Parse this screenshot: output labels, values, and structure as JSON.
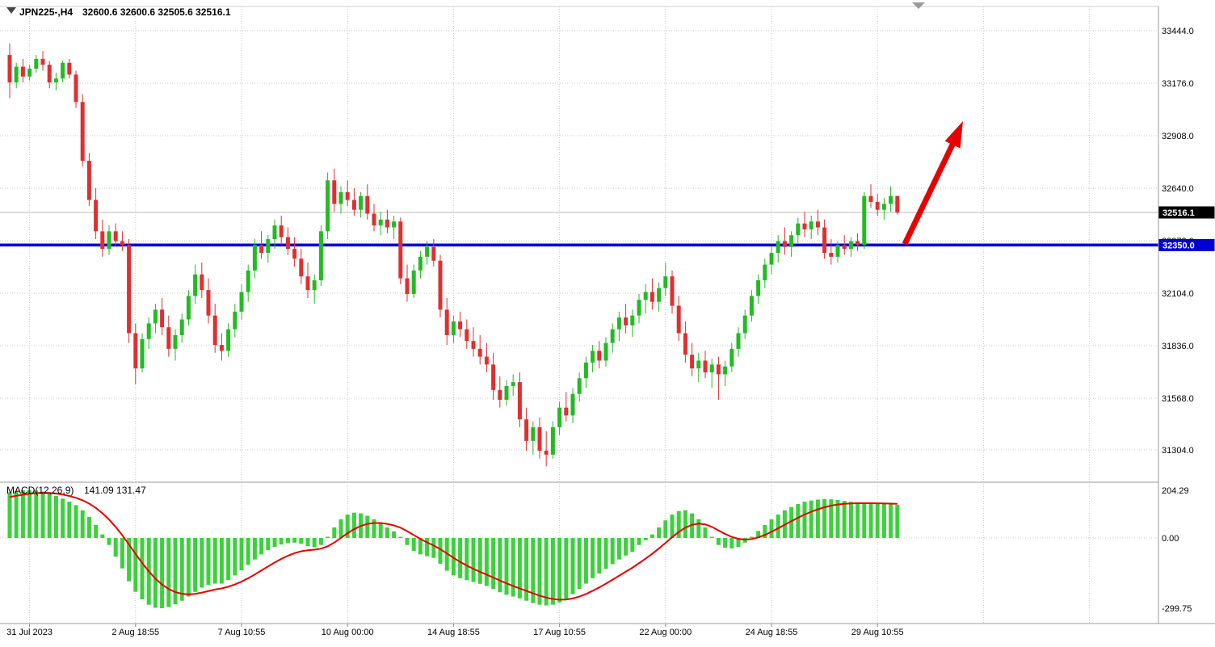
{
  "header": {
    "symbol": "JPN225-,H4",
    "ohlc": "32600.6 32600.6 32505.6 32516.1"
  },
  "chart_data": {
    "type": "candlestick",
    "title": "JPN225- H4",
    "symbol": "JPN225-",
    "timeframe": "H4",
    "price_axis": {
      "gridlines": [
        33444.0,
        33176.0,
        32908.0,
        32640.0,
        32372.0,
        32104.0,
        31836.0,
        31568.0,
        31304.0
      ],
      "visible_range": [
        31170,
        33570
      ],
      "decimals": 1
    },
    "time_axis": {
      "labels": [
        "31 Jul 2023",
        "2 Aug 18:55",
        "7 Aug 10:55",
        "10 Aug 00:00",
        "14 Aug 18:55",
        "17 Aug 10:55",
        "22 Aug 00:00",
        "24 Aug 18:55",
        "29 Aug 10:55"
      ]
    },
    "current_price": 32516.1,
    "current_price_label": "32516.1",
    "horizontal_line": {
      "value": 32350.0,
      "label": "32350.0"
    },
    "arrow_annotation": {
      "direction": "up-right",
      "color": "#e60000"
    },
    "candles": [
      [
        33320,
        33380,
        33100,
        33180
      ],
      [
        33180,
        33280,
        33150,
        33260
      ],
      [
        33260,
        33300,
        33180,
        33210
      ],
      [
        33210,
        33270,
        33190,
        33250
      ],
      [
        33250,
        33320,
        33230,
        33300
      ],
      [
        33300,
        33340,
        33240,
        33270
      ],
      [
        33270,
        33290,
        33150,
        33180
      ],
      [
        33180,
        33230,
        33140,
        33200
      ],
      [
        33200,
        33290,
        33180,
        33280
      ],
      [
        33280,
        33300,
        33200,
        33220
      ],
      [
        33220,
        33240,
        33050,
        33080
      ],
      [
        33080,
        33120,
        32750,
        32780
      ],
      [
        32780,
        32820,
        32550,
        32580
      ],
      [
        32580,
        32640,
        32380,
        32420
      ],
      [
        32420,
        32480,
        32290,
        32330
      ],
      [
        32330,
        32450,
        32300,
        32420
      ],
      [
        32420,
        32460,
        32340,
        32370
      ],
      [
        32370,
        32420,
        32320,
        32350
      ],
      [
        32350,
        32380,
        31850,
        31900
      ],
      [
        31900,
        31950,
        31640,
        31720
      ],
      [
        31720,
        31900,
        31700,
        31870
      ],
      [
        31870,
        31980,
        31820,
        31950
      ],
      [
        31950,
        32050,
        31900,
        32020
      ],
      [
        32020,
        32080,
        31890,
        31930
      ],
      [
        31930,
        31990,
        31780,
        31820
      ],
      [
        31820,
        31920,
        31760,
        31890
      ],
      [
        31890,
        32000,
        31850,
        31970
      ],
      [
        31970,
        32120,
        31940,
        32090
      ],
      [
        32090,
        32250,
        32050,
        32200
      ],
      [
        32200,
        32260,
        32080,
        32120
      ],
      [
        32120,
        32180,
        31950,
        31990
      ],
      [
        31990,
        32050,
        31800,
        31840
      ],
      [
        31840,
        31900,
        31760,
        31810
      ],
      [
        31810,
        31950,
        31780,
        31920
      ],
      [
        31920,
        32050,
        31880,
        32010
      ],
      [
        32010,
        32150,
        31970,
        32110
      ],
      [
        32110,
        32250,
        32060,
        32220
      ],
      [
        32220,
        32380,
        32180,
        32350
      ],
      [
        32350,
        32420,
        32280,
        32310
      ],
      [
        32310,
        32400,
        32260,
        32380
      ],
      [
        32380,
        32480,
        32330,
        32450
      ],
      [
        32450,
        32500,
        32350,
        32390
      ],
      [
        32390,
        32440,
        32300,
        32330
      ],
      [
        32330,
        32390,
        32240,
        32280
      ],
      [
        32280,
        32330,
        32150,
        32190
      ],
      [
        32190,
        32260,
        32080,
        32120
      ],
      [
        32120,
        32200,
        32050,
        32170
      ],
      [
        32170,
        32450,
        32140,
        32420
      ],
      [
        32420,
        32720,
        32380,
        32680
      ],
      [
        32680,
        32740,
        32520,
        32560
      ],
      [
        32560,
        32650,
        32510,
        32620
      ],
      [
        32620,
        32680,
        32550,
        32580
      ],
      [
        32580,
        32640,
        32500,
        32530
      ],
      [
        32530,
        32620,
        32490,
        32600
      ],
      [
        32600,
        32660,
        32480,
        32510
      ],
      [
        32510,
        32560,
        32420,
        32450
      ],
      [
        32450,
        32520,
        32400,
        32480
      ],
      [
        32480,
        32530,
        32410,
        32440
      ],
      [
        32440,
        32500,
        32380,
        32470
      ],
      [
        32470,
        32490,
        32150,
        32180
      ],
      [
        32180,
        32250,
        32060,
        32100
      ],
      [
        32100,
        32250,
        32080,
        32220
      ],
      [
        32220,
        32320,
        32180,
        32290
      ],
      [
        32290,
        32370,
        32250,
        32340
      ],
      [
        32340,
        32380,
        32240,
        32270
      ],
      [
        32270,
        32300,
        31980,
        32020
      ],
      [
        32020,
        32080,
        31840,
        31890
      ],
      [
        31890,
        31990,
        31850,
        31960
      ],
      [
        31960,
        32010,
        31880,
        31920
      ],
      [
        31920,
        31970,
        31820,
        31860
      ],
      [
        31860,
        31930,
        31780,
        31820
      ],
      [
        31820,
        31890,
        31740,
        31780
      ],
      [
        31780,
        31850,
        31700,
        31740
      ],
      [
        31740,
        31800,
        31560,
        31610
      ],
      [
        31610,
        31680,
        31520,
        31560
      ],
      [
        31560,
        31660,
        31530,
        31630
      ],
      [
        31630,
        31690,
        31580,
        31650
      ],
      [
        31650,
        31700,
        31420,
        31460
      ],
      [
        31460,
        31520,
        31300,
        31350
      ],
      [
        31350,
        31450,
        31280,
        31420
      ],
      [
        31420,
        31470,
        31260,
        31300
      ],
      [
        31300,
        31400,
        31220,
        31280
      ],
      [
        31280,
        31450,
        31260,
        31420
      ],
      [
        31420,
        31550,
        31380,
        31520
      ],
      [
        31520,
        31600,
        31450,
        31480
      ],
      [
        31480,
        31620,
        31440,
        31590
      ],
      [
        31590,
        31700,
        31550,
        31670
      ],
      [
        31670,
        31780,
        31620,
        31750
      ],
      [
        31750,
        31840,
        31700,
        31810
      ],
      [
        31810,
        31860,
        31720,
        31760
      ],
      [
        31760,
        31880,
        31730,
        31850
      ],
      [
        31850,
        31950,
        31800,
        31920
      ],
      [
        31920,
        32010,
        31860,
        31980
      ],
      [
        31980,
        32050,
        31900,
        31940
      ],
      [
        31940,
        32020,
        31880,
        31990
      ],
      [
        31990,
        32100,
        31950,
        32070
      ],
      [
        32070,
        32150,
        32000,
        32110
      ],
      [
        32110,
        32180,
        32020,
        32060
      ],
      [
        32060,
        32160,
        32010,
        32130
      ],
      [
        32130,
        32260,
        32090,
        32190
      ],
      [
        32190,
        32220,
        32000,
        32040
      ],
      [
        32040,
        32090,
        31860,
        31900
      ],
      [
        31900,
        31960,
        31750,
        31790
      ],
      [
        31790,
        31850,
        31680,
        31720
      ],
      [
        31720,
        31800,
        31650,
        31760
      ],
      [
        31760,
        31810,
        31670,
        31700
      ],
      [
        31700,
        31770,
        31620,
        31740
      ],
      [
        31740,
        31780,
        31560,
        31690
      ],
      [
        31690,
        31760,
        31630,
        31730
      ],
      [
        31730,
        31850,
        31700,
        31820
      ],
      [
        31820,
        31930,
        31780,
        31900
      ],
      [
        31900,
        32020,
        31870,
        31990
      ],
      [
        31990,
        32120,
        31960,
        32090
      ],
      [
        32090,
        32200,
        32050,
        32170
      ],
      [
        32170,
        32280,
        32130,
        32250
      ],
      [
        32250,
        32340,
        32200,
        32310
      ],
      [
        32310,
        32400,
        32260,
        32370
      ],
      [
        32370,
        32440,
        32300,
        32340
      ],
      [
        32340,
        32420,
        32290,
        32400
      ],
      [
        32400,
        32490,
        32360,
        32460
      ],
      [
        32460,
        32520,
        32390,
        32430
      ],
      [
        32430,
        32500,
        32380,
        32470
      ],
      [
        32470,
        32530,
        32400,
        32440
      ],
      [
        32440,
        32480,
        32280,
        32310
      ],
      [
        32310,
        32380,
        32250,
        32290
      ],
      [
        32290,
        32370,
        32260,
        32350
      ],
      [
        32350,
        32400,
        32300,
        32330
      ],
      [
        32330,
        32390,
        32290,
        32370
      ],
      [
        32370,
        32410,
        32320,
        32350
      ],
      [
        32350,
        32620,
        32330,
        32600
      ],
      [
        32600,
        32660,
        32540,
        32570
      ],
      [
        32570,
        32610,
        32500,
        32530
      ],
      [
        32530,
        32590,
        32480,
        32560
      ],
      [
        32560,
        32650,
        32520,
        32600.6
      ],
      [
        32600.6,
        32600.6,
        32505.6,
        32516.1
      ]
    ],
    "macd": {
      "type": "histogram+line",
      "label": "MACD(12,26,9)",
      "values_text": "141.09 131.47",
      "main_value": 141.09,
      "signal_value": 131.47,
      "params": [
        12,
        26,
        9
      ],
      "axis_labels": [
        "204.29",
        "0.00",
        "-299.75"
      ],
      "signal_start": 170,
      "histogram": [
        195,
        200,
        203,
        204,
        202,
        198,
        190,
        180,
        168,
        155,
        140,
        118,
        90,
        55,
        15,
        -30,
        -80,
        -130,
        -185,
        -230,
        -262,
        -285,
        -298,
        -300,
        -295,
        -283,
        -268,
        -250,
        -230,
        -212,
        -200,
        -195,
        -195,
        -180,
        -160,
        -138,
        -115,
        -92,
        -70,
        -52,
        -38,
        -28,
        -22,
        -20,
        -25,
        -35,
        -40,
        -30,
        5,
        45,
        80,
        100,
        108,
        105,
        95,
        80,
        62,
        45,
        28,
        5,
        -30,
        -55,
        -70,
        -78,
        -85,
        -110,
        -140,
        -160,
        -172,
        -180,
        -188,
        -196,
        -205,
        -218,
        -232,
        -243,
        -250,
        -258,
        -268,
        -278,
        -285,
        -288,
        -285,
        -275,
        -260,
        -240,
        -218,
        -195,
        -172,
        -152,
        -132,
        -112,
        -92,
        -75,
        -60,
        -30,
        -10,
        15,
        45,
        75,
        100,
        115,
        118,
        105,
        80,
        45,
        5,
        -30,
        -42,
        -45,
        -38,
        -20,
        5,
        30,
        55,
        80,
        100,
        118,
        132,
        145,
        155,
        160,
        164,
        166,
        165,
        162,
        158,
        154,
        151,
        149,
        148,
        147,
        146,
        143,
        141
      ]
    },
    "colors": {
      "up": "#22bb22",
      "down": "#de3030",
      "macd_hist": "#3bd13b",
      "signal": "#e80000",
      "hline": "#0000d4",
      "badge_current_bg": "#000000",
      "grid": "#c9c9c9",
      "arrow": "#e60000"
    }
  }
}
